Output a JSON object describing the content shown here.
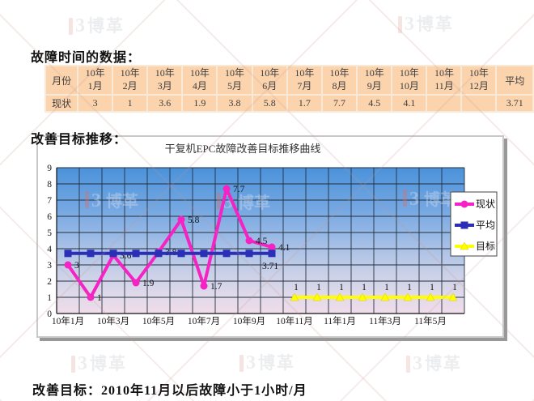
{
  "watermark": {
    "glyph": "3",
    "text": "博革"
  },
  "headings": {
    "data_heading": "故障时间的数据：",
    "transition_heading": "改善目标推移：",
    "conclusion": "改善目标：2010年11月以后故障小于1小时/月"
  },
  "table": {
    "corner": "月份",
    "row_label": "现状",
    "month_headers": [
      "10年\n1月",
      "10年\n2月",
      "10年\n3月",
      "10年\n4月",
      "10年\n5月",
      "10年\n6月",
      "10年\n7月",
      "10年\n8月",
      "10年\n9月",
      "10年\n10月",
      "10年\n11月",
      "10年\n12月"
    ],
    "average_header": "平均",
    "values": [
      "3",
      "1",
      "3.6",
      "1.9",
      "3.8",
      "5.8",
      "1.7",
      "7.7",
      "4.5",
      "4.1",
      "",
      "",
      "3.71"
    ]
  },
  "chart_data": {
    "type": "line",
    "title": "干复机EPC故障改善目标推移曲线",
    "categories": [
      "10年1月",
      "10年2月",
      "10年3月",
      "10年4月",
      "10年5月",
      "10年6月",
      "10年7月",
      "10年8月",
      "10年9月",
      "10年10月",
      "10年11月",
      "10年12月",
      "11年1月",
      "11年2月",
      "11年3月",
      "11年4月",
      "11年5月",
      "11年6月"
    ],
    "x_tick_labels": [
      "10年1月",
      "10年3月",
      "10年5月",
      "10年7月",
      "10年9月",
      "10年11月",
      "11年1月",
      "11年3月",
      "11年5月"
    ],
    "ylim": [
      0,
      9
    ],
    "y_tick_step": 1,
    "grid": true,
    "legend_position": "right",
    "legend": [
      "现状",
      "平均",
      "目标"
    ],
    "colors": {
      "current": "#f522c4",
      "average": "#2b2fb5",
      "target": "#ffff00"
    },
    "series": [
      {
        "name": "现状",
        "color": "#f522c4",
        "marker": "circle",
        "start_index": 0,
        "values": [
          3,
          1,
          3.6,
          1.9,
          3.8,
          5.8,
          1.7,
          7.7,
          4.5,
          4.1
        ],
        "label_position": "right"
      },
      {
        "name": "平均",
        "color": "#2b2fb5",
        "marker": "square",
        "start_index": 0,
        "values": [
          3.71,
          3.71,
          3.71,
          3.71,
          3.71,
          3.71,
          3.71,
          3.71,
          3.71,
          3.71
        ],
        "label_position": "below-last",
        "last_label": "3.71"
      },
      {
        "name": "目标",
        "color": "#ffff00",
        "marker": "triangle",
        "start_index": 10,
        "values": [
          1,
          1,
          1,
          1,
          1,
          1,
          1,
          1
        ],
        "label_position": "above"
      }
    ]
  }
}
